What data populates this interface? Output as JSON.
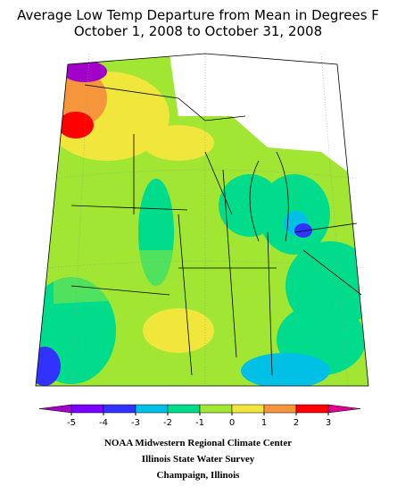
{
  "title": [
    "Average Low Temp Departure from Mean in Degrees F",
    "October 1, 2008 to October 31, 2008"
  ],
  "legend": {
    "ticks": [
      -5,
      -4,
      -3,
      -2,
      -1,
      0,
      1,
      2,
      3
    ],
    "colors": [
      "#a000c8",
      "#7a00ff",
      "#3232ff",
      "#00c0e6",
      "#00dc8c",
      "#a0e632",
      "#f0e63c",
      "#f5963c",
      "#ff0000",
      "#e0008c"
    ]
  },
  "footer": [
    "NOAA Midwestern Regional Climate Center",
    "Illinois State Water Survey",
    "Champaign, Illinois"
  ]
}
